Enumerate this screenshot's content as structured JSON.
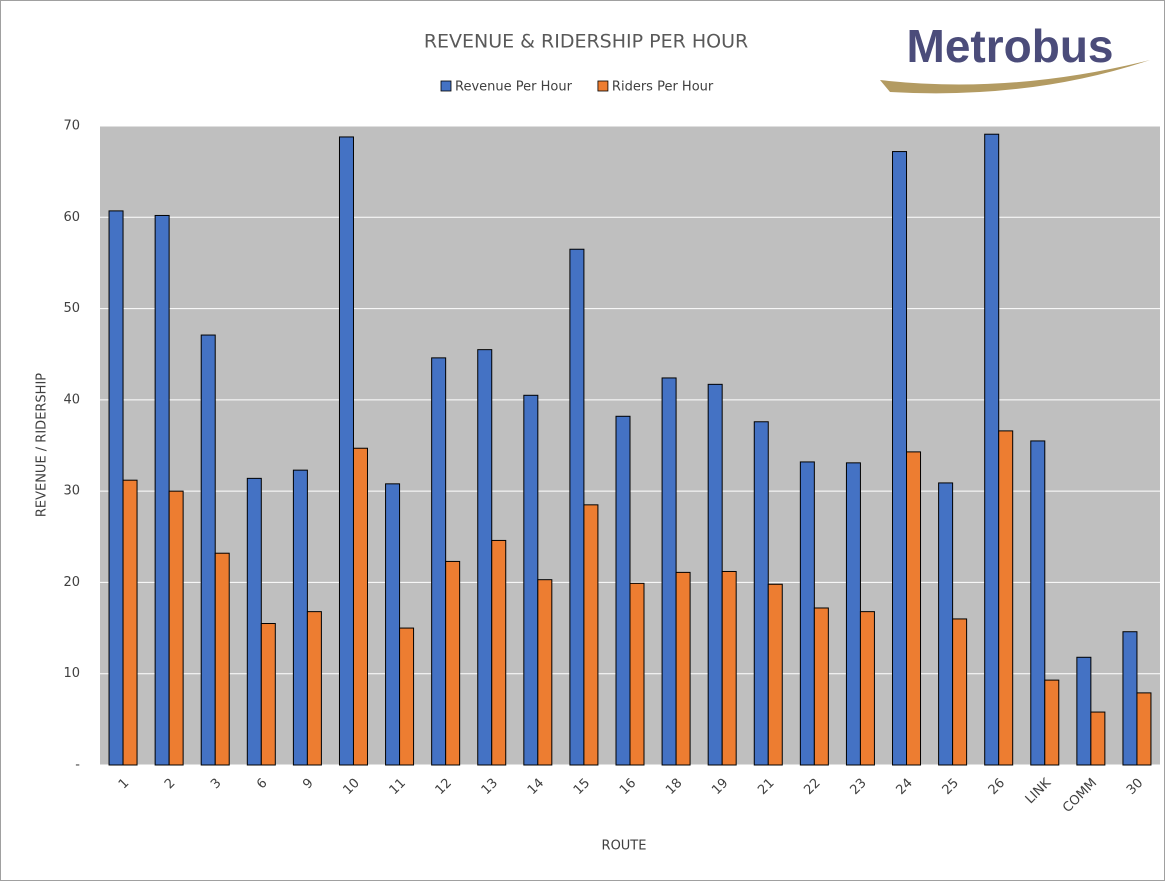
{
  "logo": "Metrobus",
  "chart_data": {
    "type": "bar",
    "title": "REVENUE & RIDERSHIP PER HOUR",
    "x_label": "ROUTE",
    "y_label": "REVENUE / RIDERSHIP",
    "categories": [
      "1",
      "2",
      "3",
      "6",
      "9",
      "10",
      "11",
      "12",
      "13",
      "14",
      "15",
      "16",
      "18",
      "19",
      "21",
      "22",
      "23",
      "24",
      "25",
      "26",
      "LINK",
      "COMM",
      "30"
    ],
    "series": [
      {
        "name": "Revenue Per Hour",
        "color": "#4472c4",
        "values": [
          60.7,
          60.2,
          47.1,
          31.4,
          32.3,
          68.8,
          30.8,
          44.6,
          45.5,
          40.5,
          56.5,
          38.2,
          42.4,
          41.7,
          37.6,
          33.2,
          33.1,
          67.2,
          30.9,
          69.1,
          35.5,
          11.8,
          14.6
        ]
      },
      {
        "name": "Riders Per Hour",
        "color": "#ed7d31",
        "values": [
          31.2,
          30.0,
          23.2,
          15.5,
          16.8,
          34.7,
          15.0,
          22.3,
          24.6,
          20.3,
          28.5,
          19.9,
          21.1,
          21.2,
          19.8,
          17.2,
          16.8,
          34.3,
          16.0,
          36.6,
          9.3,
          5.8,
          7.9
        ]
      }
    ],
    "ylim": [
      0,
      70
    ],
    "yticks": [
      {
        "value": 0,
        "label": "-"
      },
      10,
      20,
      30,
      40,
      50,
      60,
      70
    ],
    "grid": true,
    "legend": "top",
    "plot_background": "#bfbfbf"
  }
}
